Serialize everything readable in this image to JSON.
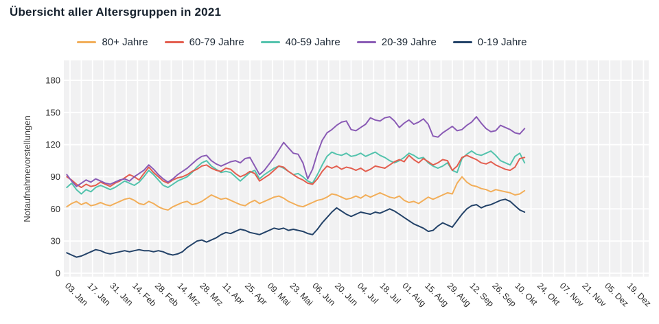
{
  "page": {
    "title": "Übersicht aller Altersgruppen in 2021"
  },
  "legend": {
    "items": [
      {
        "label": "80+ Jahre"
      },
      {
        "label": "60-79 Jahre"
      },
      {
        "label": "40-59 Jahre"
      },
      {
        "label": "20-39 Jahre"
      },
      {
        "label": "0-19 Jahre"
      }
    ]
  },
  "chart_data": {
    "type": "line",
    "title": "Übersicht aller Altersgruppen in 2021",
    "xlabel": "",
    "ylabel": "Notaufnahmevorstellungen",
    "ylim": [
      0,
      198
    ],
    "y_ticks": [
      0,
      30,
      60,
      90,
      120,
      150,
      180
    ],
    "grid": true,
    "x_grid_start_doy": 3,
    "x_grid_step_days": 7,
    "legend_position": "top",
    "plot_bg_color": "#f1f1f2",
    "grid_color": "#ffffff",
    "tick_color": "#2f2f2f",
    "x_ticks": [
      {
        "label": "03. Jan",
        "doy": 3
      },
      {
        "label": "17. Jan",
        "doy": 17
      },
      {
        "label": "31. Jan",
        "doy": 31
      },
      {
        "label": "14. Feb",
        "doy": 45
      },
      {
        "label": "28. Feb",
        "doy": 59
      },
      {
        "label": "14. Mrz",
        "doy": 73
      },
      {
        "label": "28. Mrz",
        "doy": 87
      },
      {
        "label": "11. Apr",
        "doy": 101
      },
      {
        "label": "25. Apr",
        "doy": 115
      },
      {
        "label": "09. Mai",
        "doy": 129
      },
      {
        "label": "23. Mai",
        "doy": 143
      },
      {
        "label": "06. Jun",
        "doy": 157
      },
      {
        "label": "20. Jun",
        "doy": 171
      },
      {
        "label": "04. Jul",
        "doy": 185
      },
      {
        "label": "18. Jul",
        "doy": 199
      },
      {
        "label": "01. Aug",
        "doy": 213
      },
      {
        "label": "15. Aug",
        "doy": 227
      },
      {
        "label": "29. Aug",
        "doy": 241
      },
      {
        "label": "12. Sep",
        "doy": 255
      },
      {
        "label": "26. Sep",
        "doy": 269
      },
      {
        "label": "10. Okt",
        "doy": 283
      },
      {
        "label": "24. Okt",
        "doy": 297
      },
      {
        "label": "07. Nov",
        "doy": 311
      },
      {
        "label": "21. Nov",
        "doy": 325
      },
      {
        "label": "05. Dez",
        "doy": 339
      },
      {
        "label": "19. Dez",
        "doy": 353
      }
    ],
    "series": [
      {
        "name": "80+ Jahre",
        "color": "#f2ae59",
        "start_doy": 1,
        "step_days": 3,
        "values": [
          62,
          65,
          67,
          64,
          66,
          63,
          64,
          66,
          64,
          63,
          65,
          67,
          69,
          70,
          68,
          65,
          64,
          67,
          65,
          62,
          60,
          59,
          62,
          64,
          66,
          67,
          64,
          65,
          67,
          70,
          73,
          71,
          69,
          70,
          68,
          66,
          64,
          63,
          66,
          68,
          65,
          67,
          69,
          71,
          72,
          70,
          67,
          65,
          63,
          62,
          64,
          66,
          68,
          69,
          71,
          74,
          73,
          71,
          69,
          70,
          72,
          70,
          73,
          71,
          73,
          75,
          73,
          71,
          70,
          72,
          68,
          66,
          67,
          65,
          68,
          71,
          69,
          71,
          73,
          75,
          74,
          84,
          90,
          85,
          82,
          81,
          79,
          78,
          76,
          78,
          77,
          76,
          75,
          73,
          74,
          77
        ]
      },
      {
        "name": "60-79 Jahre",
        "color": "#e35e4f",
        "start_doy": 1,
        "step_days": 3,
        "values": [
          90,
          87,
          83,
          80,
          83,
          81,
          82,
          85,
          83,
          81,
          84,
          86,
          89,
          92,
          90,
          87,
          93,
          99,
          94,
          90,
          86,
          84,
          87,
          89,
          90,
          92,
          95,
          97,
          100,
          101,
          98,
          96,
          95,
          98,
          97,
          93,
          90,
          92,
          95,
          93,
          86,
          89,
          92,
          96,
          100,
          99,
          95,
          92,
          89,
          87,
          84,
          83,
          88,
          95,
          100,
          98,
          100,
          97,
          99,
          98,
          96,
          98,
          95,
          97,
          100,
          99,
          98,
          101,
          104,
          106,
          104,
          110,
          106,
          103,
          107,
          104,
          101,
          103,
          106,
          105,
          96,
          100,
          108,
          110,
          108,
          106,
          103,
          102,
          104,
          101,
          99,
          97,
          96,
          99,
          107,
          108
        ]
      },
      {
        "name": "40-59 Jahre",
        "color": "#54c3ad",
        "start_doy": 1,
        "step_days": 3,
        "values": [
          80,
          84,
          78,
          74,
          78,
          76,
          80,
          82,
          80,
          78,
          80,
          83,
          86,
          84,
          82,
          85,
          90,
          96,
          92,
          87,
          82,
          80,
          83,
          86,
          88,
          90,
          94,
          99,
          103,
          105,
          100,
          97,
          94,
          95,
          94,
          90,
          86,
          90,
          94,
          96,
          88,
          92,
          95,
          98,
          100,
          98,
          95,
          92,
          93,
          90,
          86,
          84,
          92,
          101,
          109,
          113,
          111,
          110,
          112,
          109,
          110,
          112,
          109,
          111,
          113,
          110,
          108,
          105,
          103,
          105,
          108,
          112,
          110,
          107,
          108,
          103,
          100,
          98,
          100,
          103,
          96,
          94,
          107,
          111,
          114,
          111,
          110,
          112,
          114,
          110,
          105,
          103,
          101,
          109,
          112,
          103
        ]
      },
      {
        "name": "20-39 Jahre",
        "color": "#8a5bb5",
        "start_doy": 1,
        "step_days": 3,
        "values": [
          92,
          86,
          81,
          84,
          87,
          85,
          88,
          86,
          84,
          83,
          85,
          87,
          88,
          86,
          90,
          93,
          96,
          101,
          97,
          92,
          88,
          85,
          88,
          92,
          95,
          98,
          102,
          106,
          109,
          110,
          105,
          102,
          100,
          102,
          104,
          105,
          103,
          107,
          108,
          100,
          92,
          96,
          102,
          108,
          115,
          122,
          117,
          112,
          111,
          103,
          88,
          97,
          112,
          124,
          131,
          134,
          138,
          141,
          142,
          134,
          133,
          136,
          139,
          145,
          143,
          142,
          145,
          146,
          142,
          136,
          140,
          143,
          139,
          141,
          144,
          139,
          128,
          127,
          131,
          134,
          137,
          133,
          134,
          138,
          141,
          146,
          140,
          135,
          132,
          133,
          138,
          136,
          134,
          131,
          130,
          135
        ]
      },
      {
        "name": "0-19 Jahre",
        "color": "#234268",
        "start_doy": 1,
        "step_days": 3,
        "values": [
          19,
          17,
          15,
          16,
          18,
          20,
          22,
          21,
          19,
          18,
          19,
          20,
          21,
          20,
          21,
          22,
          21,
          21,
          20,
          21,
          20,
          18,
          17,
          18,
          20,
          24,
          27,
          30,
          31,
          29,
          31,
          33,
          36,
          38,
          37,
          39,
          41,
          40,
          38,
          37,
          36,
          38,
          40,
          42,
          41,
          42,
          40,
          41,
          40,
          39,
          37,
          36,
          41,
          47,
          52,
          57,
          61,
          58,
          55,
          53,
          55,
          57,
          56,
          55,
          57,
          56,
          58,
          60,
          58,
          55,
          52,
          49,
          46,
          44,
          42,
          39,
          40,
          44,
          47,
          45,
          43,
          49,
          55,
          60,
          63,
          64,
          61,
          63,
          64,
          66,
          68,
          69,
          67,
          63,
          59,
          57
        ]
      }
    ]
  }
}
